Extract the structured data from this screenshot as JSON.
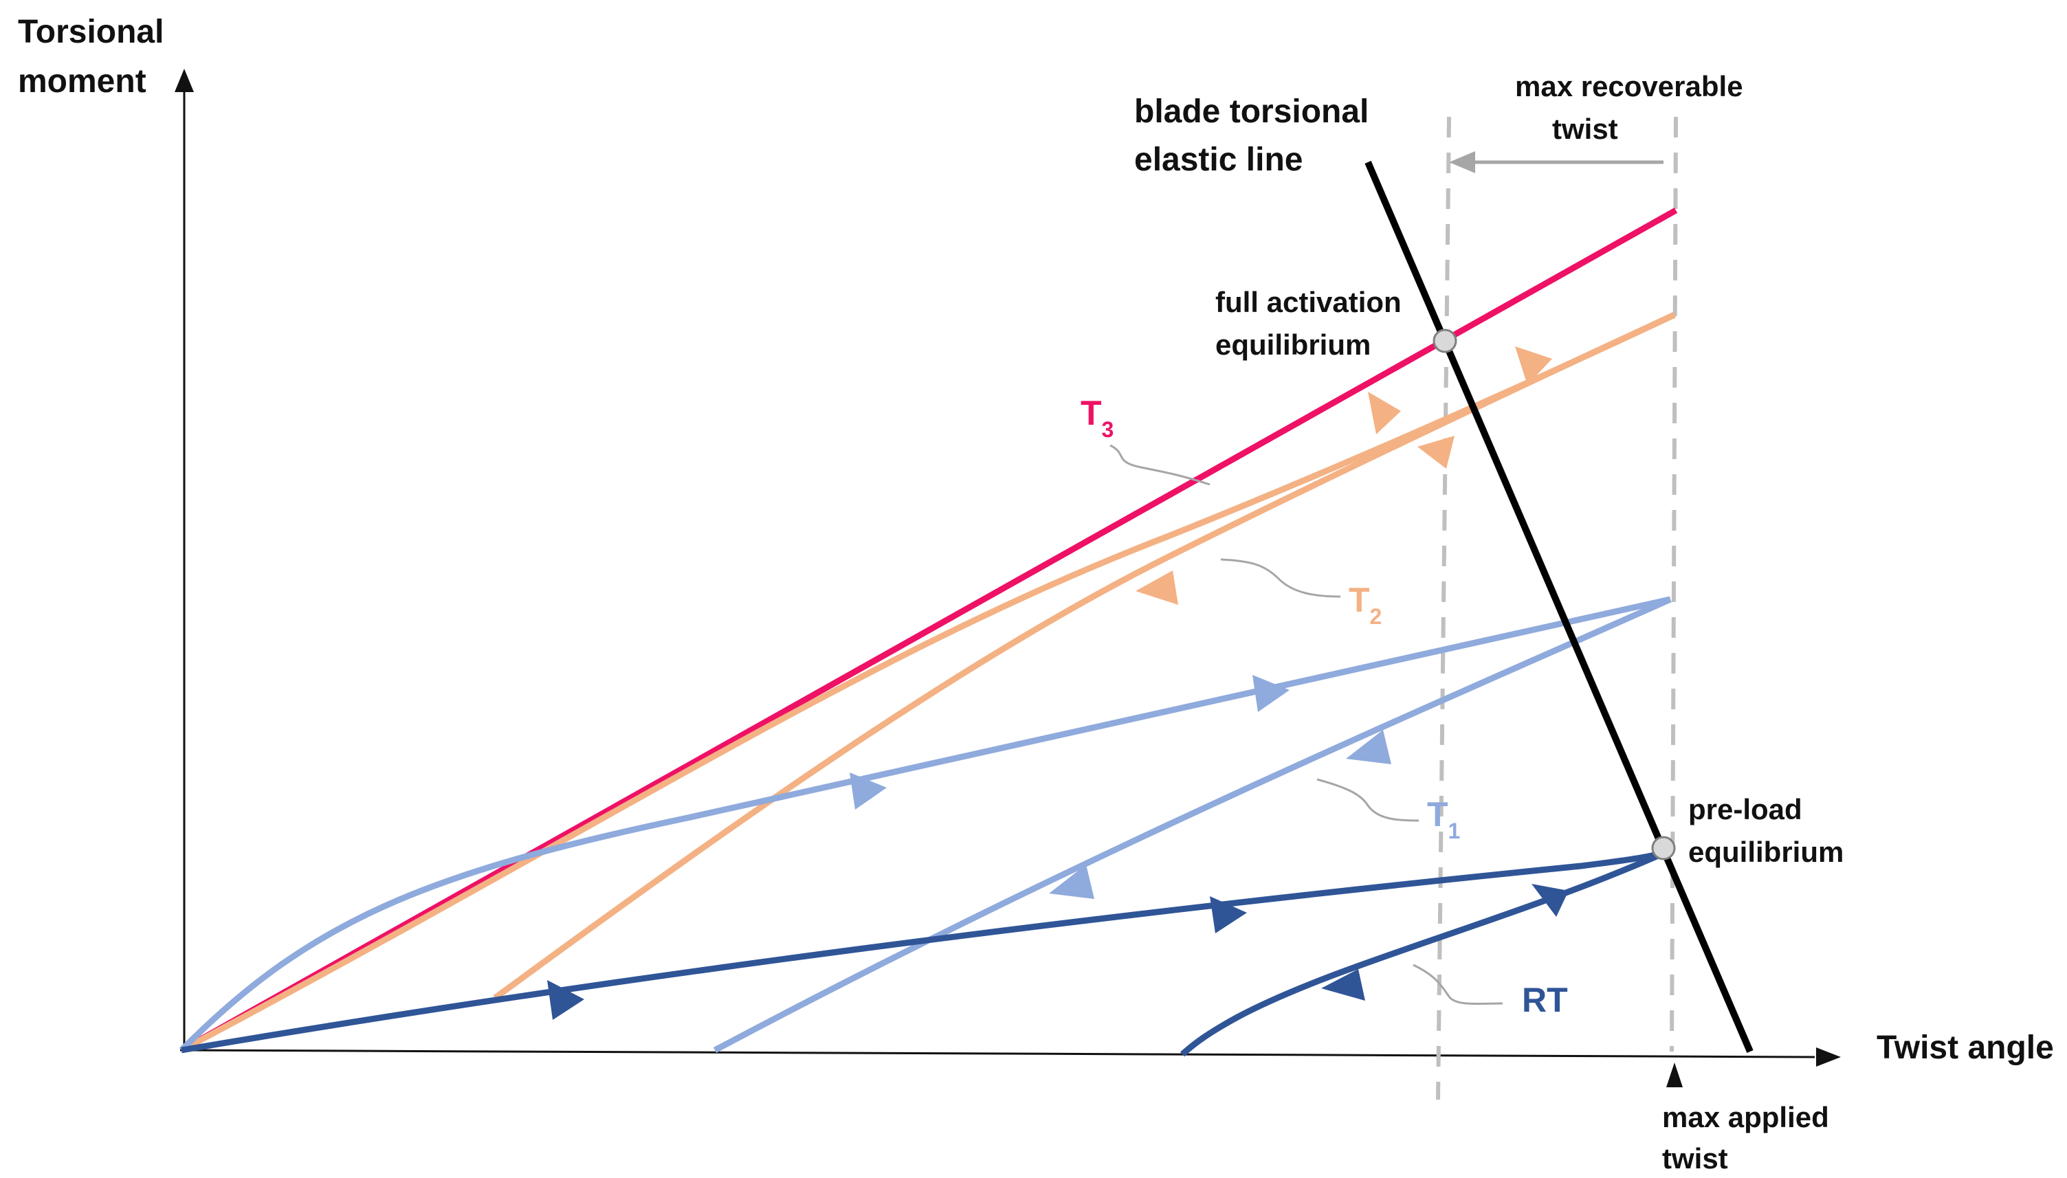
{
  "axes": {
    "y_label": [
      "Torsional",
      "moment"
    ],
    "x_label": "Twist angle"
  },
  "annotations": {
    "elastic_line": [
      "blade torsional",
      "elastic line"
    ],
    "max_recoverable": [
      "max recoverable",
      "twist"
    ],
    "full_activation": [
      "full activation",
      "equilibrium"
    ],
    "pre_load": [
      "pre-load",
      "equilibrium"
    ],
    "max_applied": [
      "max applied",
      "twist"
    ]
  },
  "curves": {
    "t3": {
      "label": "T",
      "sub": "3",
      "color": "#ee1166"
    },
    "t2": {
      "label": "T",
      "sub": "2",
      "color": "#f4b183"
    },
    "t1": {
      "label": "T",
      "sub": "1",
      "color": "#8faadc"
    },
    "rt": {
      "label": "RT",
      "color": "#2f5597"
    }
  },
  "colors": {
    "axis": "#111111",
    "elastic_line": "#000000",
    "guide_dashed": "#bfbfbf",
    "leader": "#a6a6a6",
    "marker_fill": "#d9d9d9"
  }
}
